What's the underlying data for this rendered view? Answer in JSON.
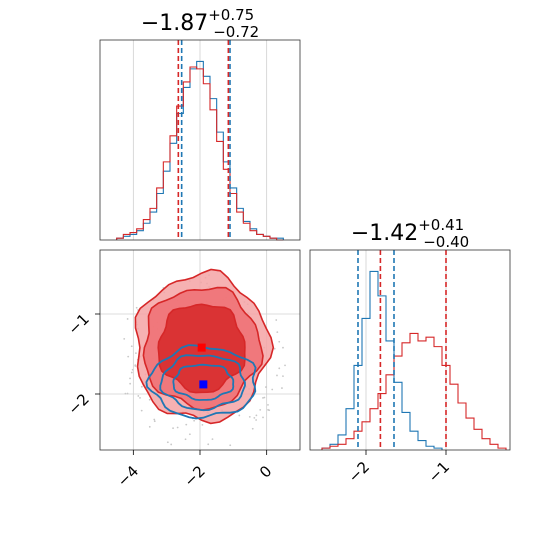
{
  "colors": {
    "blue": "#1f77b4",
    "red": "#d62728",
    "red_light": "#f4a3a5",
    "red_mid": "#ee6f72",
    "grid": "#d0d0d0"
  },
  "chart_data": [
    {
      "type": "histogram",
      "panel": "param1-marginal",
      "title": {
        "main": "−1.87",
        "sup": "+0.75",
        "sub": "−0.72"
      },
      "xlim": [
        -5,
        1
      ],
      "grid": true,
      "series": [
        {
          "color": "blue",
          "quantiles": [
            -2.55,
            -1.1
          ],
          "bins_x": [
            -4.4,
            -4.2,
            -4.0,
            -3.8,
            -3.6,
            -3.4,
            -3.2,
            -3.0,
            -2.8,
            -2.6,
            -2.4,
            -2.2,
            -2.0,
            -1.8,
            -1.6,
            -1.4,
            -1.2,
            -1.0,
            -0.8,
            -0.6,
            -0.4,
            -0.2,
            0.0,
            0.2,
            0.4
          ],
          "counts": [
            1,
            2,
            3,
            5,
            9,
            15,
            25,
            37,
            52,
            68,
            82,
            92,
            96,
            88,
            76,
            58,
            42,
            28,
            17,
            10,
            6,
            3,
            2,
            1,
            1
          ]
        },
        {
          "color": "red",
          "quantiles": [
            -2.65,
            -1.15
          ],
          "bins_x": [
            -4.4,
            -4.2,
            -4.0,
            -3.8,
            -3.6,
            -3.4,
            -3.2,
            -3.0,
            -2.8,
            -2.6,
            -2.4,
            -2.2,
            -2.0,
            -1.8,
            -1.6,
            -1.4,
            -1.2,
            -1.0,
            -0.8,
            -0.6,
            -0.4,
            -0.2,
            0.0,
            0.2,
            0.4
          ],
          "counts": [
            1,
            3,
            4,
            6,
            11,
            17,
            28,
            42,
            56,
            72,
            85,
            93,
            92,
            84,
            70,
            53,
            38,
            25,
            15,
            9,
            5,
            3,
            2,
            1,
            0
          ]
        }
      ]
    },
    {
      "type": "histogram",
      "panel": "param2-marginal",
      "title": {
        "main": "−1.42",
        "sup": "+0.41",
        "sub": "−0.40"
      },
      "xlim": [
        -2.7,
        -0.2
      ],
      "xticks": [
        "−2",
        "−1"
      ],
      "grid": true,
      "series": [
        {
          "color": "blue",
          "quantiles": [
            -2.1,
            -1.65
          ],
          "bins_x": [
            -2.5,
            -2.4,
            -2.3,
            -2.2,
            -2.1,
            -2.0,
            -1.9,
            -1.8,
            -1.7,
            -1.6,
            -1.5,
            -1.4,
            -1.3,
            -1.2,
            -1.1
          ],
          "counts": [
            1,
            3,
            8,
            22,
            45,
            70,
            95,
            82,
            58,
            36,
            20,
            10,
            5,
            2,
            1
          ]
        },
        {
          "color": "red",
          "quantiles": [
            -1.82,
            -1.0
          ],
          "bins_x": [
            -2.5,
            -2.4,
            -2.3,
            -2.2,
            -2.1,
            -2.0,
            -1.9,
            -1.8,
            -1.7,
            -1.6,
            -1.5,
            -1.4,
            -1.3,
            -1.2,
            -1.1,
            -1.0,
            -0.9,
            -0.8,
            -0.7,
            -0.6,
            -0.5,
            -0.4,
            -0.3
          ],
          "counts": [
            1,
            2,
            3,
            6,
            10,
            15,
            22,
            30,
            40,
            50,
            57,
            62,
            58,
            60,
            55,
            45,
            35,
            25,
            17,
            11,
            6,
            3,
            1
          ]
        }
      ]
    },
    {
      "type": "contour",
      "panel": "param1-vs-param2",
      "xlim": [
        -5,
        1
      ],
      "ylim": [
        -2.7,
        -0.2
      ],
      "xticks": [
        "−4",
        "−2",
        "0"
      ],
      "yticks": [
        "−2",
        "−1"
      ],
      "grid": true,
      "series": [
        {
          "color": "blue",
          "center": [
            -1.9,
            -1.85
          ],
          "style": "lines",
          "levels": [
            [
              0.9,
              0.22
            ],
            [
              1.25,
              0.34
            ],
            [
              1.6,
              0.44
            ]
          ]
        },
        {
          "color": "red",
          "center": [
            -1.95,
            -1.42
          ],
          "style": "filled",
          "levels": [
            [
              1.3,
              0.55
            ],
            [
              1.75,
              0.75
            ],
            [
              2.0,
              0.92
            ]
          ]
        }
      ],
      "markers": [
        {
          "color": "red",
          "x": -1.95,
          "y": -1.42
        },
        {
          "color": "blue",
          "x": -1.9,
          "y": -1.88
        }
      ]
    }
  ]
}
